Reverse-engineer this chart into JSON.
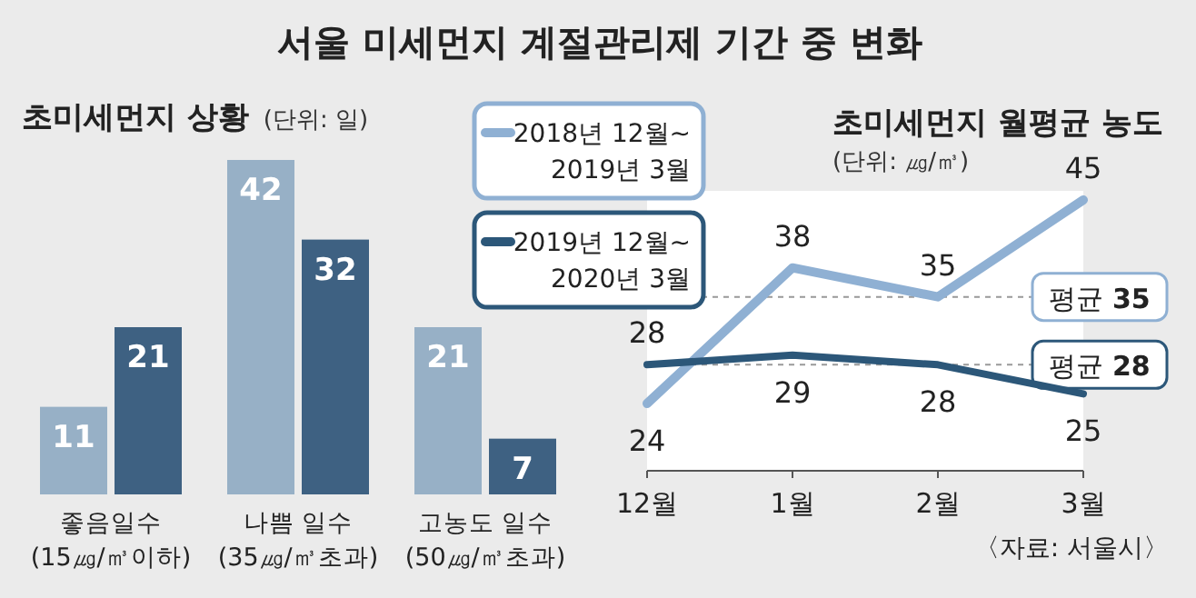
{
  "chart_data": [
    {
      "type": "bar",
      "title": "서울 미세먼지 계절관리제 기간 중 변화",
      "subtitle": "초미세먼지 상황",
      "ylabel": "(단위: 일)",
      "categories": [
        "좋음일수\n(15㎍/㎥이하)",
        "나쁨 일수\n(35㎍/㎥초과)",
        "고농도 일수\n(50㎍/㎥초과)"
      ],
      "series": [
        {
          "color": "#97b0c6",
          "values": [
            11,
            42,
            21
          ]
        },
        {
          "color": "#3e6182",
          "values": [
            21,
            32,
            7
          ]
        }
      ],
      "data_labels": true
    },
    {
      "type": "line",
      "title": "초미세먼지 월평균 농도",
      "ylabel": "(단위: ㎍/㎥)",
      "categories": [
        "12월",
        "1월",
        "2월",
        "3월"
      ],
      "series": [
        {
          "name": "2018년 12월~\n2019년 3월",
          "color": "#8fb0d3",
          "values": [
            24,
            38,
            35,
            45
          ]
        },
        {
          "name": "2019년 12월~\n2020년 3월",
          "color": "#2c5779",
          "values": [
            28,
            29,
            28,
            25
          ]
        }
      ],
      "data_labels": true,
      "legend": "top left",
      "ref_lines": [
        {
          "axis": "y",
          "value": 35,
          "label": "평균 **35**",
          "color": "#999999",
          "line_style": "dashed"
        },
        {
          "axis": "y",
          "value": 28,
          "label": "평균 **28**",
          "color": "#999999",
          "line_style": "dashed"
        }
      ],
      "annotations": [
        "〈자료: 서울시〉"
      ]
    }
  ]
}
